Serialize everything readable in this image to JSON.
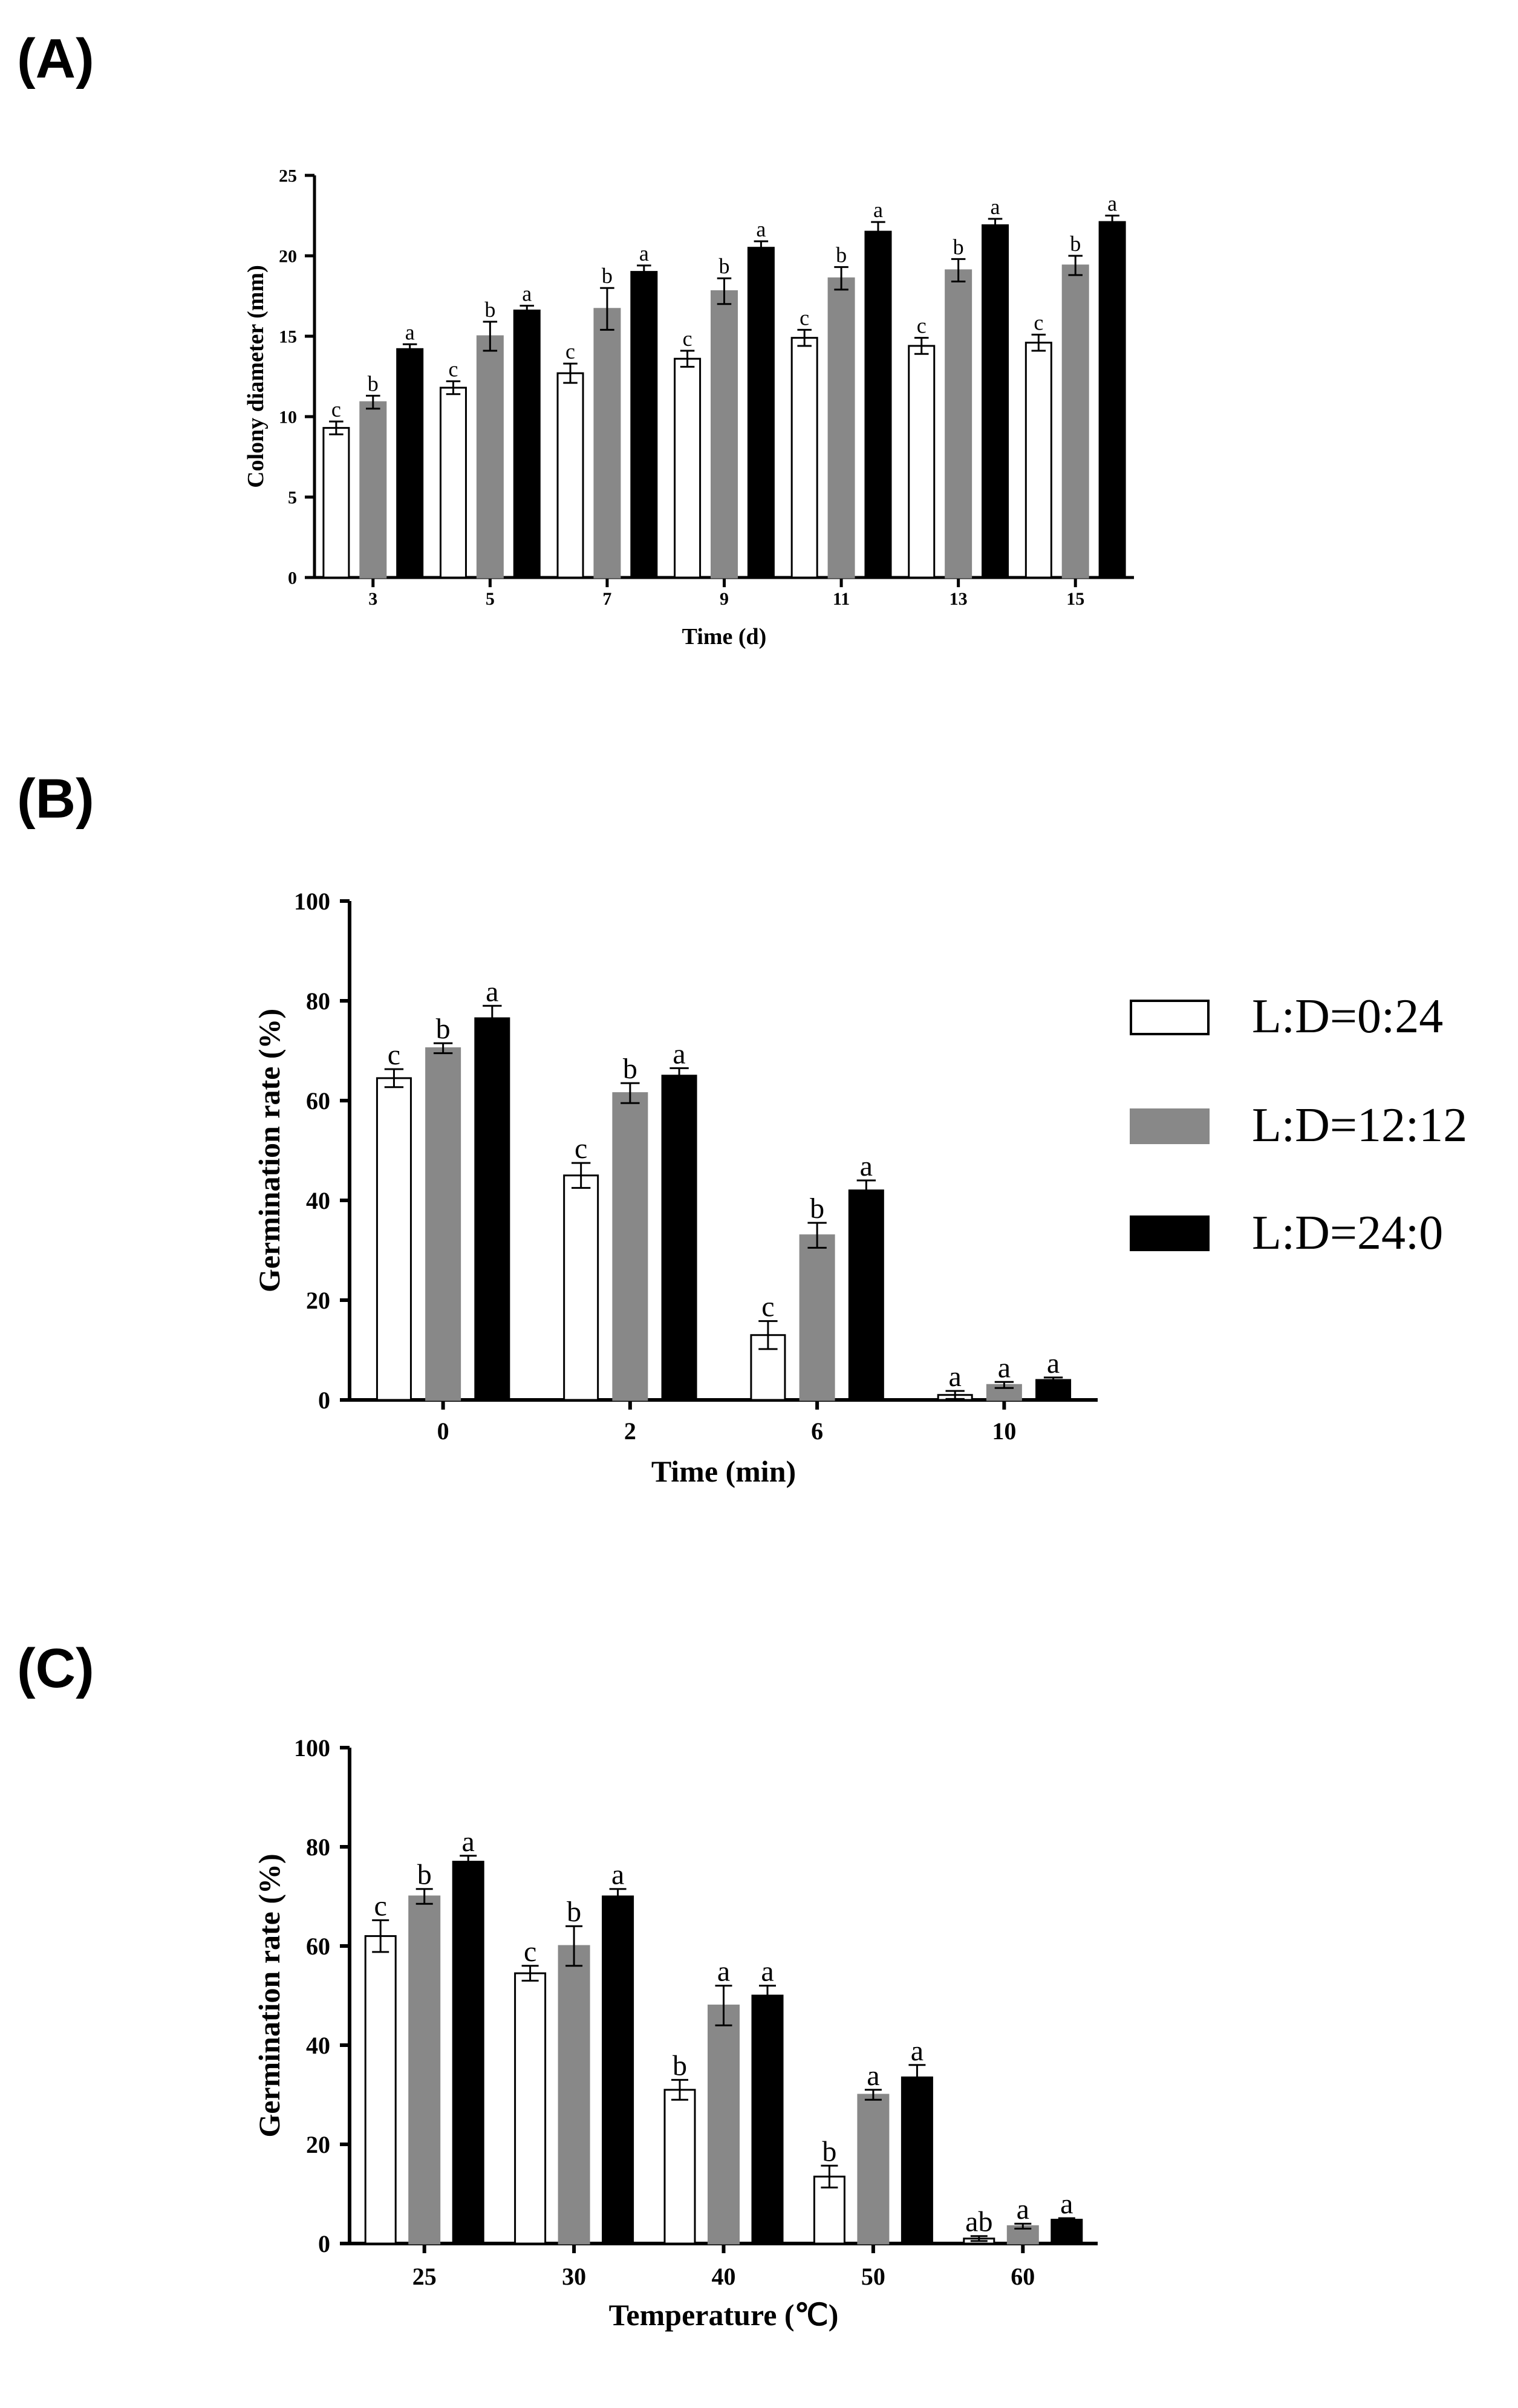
{
  "panels": [
    {
      "label": "(A)",
      "chart_data": {
        "type": "bar",
        "categories": [
          "3",
          "5",
          "7",
          "9",
          "11",
          "13",
          "15"
        ],
        "xlabel": "Time (d)",
        "ylabel": "Colony diameter (mm)",
        "ylim": [
          0,
          25
        ],
        "yticks": [
          "0",
          "5",
          "10",
          "15",
          "20",
          "25"
        ],
        "series": [
          {
            "name": "L:D=0:24",
            "values": [
              9.3,
              11.8,
              12.7,
              13.6,
              14.9,
              14.4,
              14.6
            ],
            "errors": [
              0.4,
              0.4,
              0.6,
              0.5,
              0.5,
              0.5,
              0.5
            ],
            "letters": [
              "c",
              "c",
              "c",
              "c",
              "c",
              "c",
              "c"
            ]
          },
          {
            "name": "L:D=12:12",
            "values": [
              10.9,
              15.0,
              16.7,
              17.8,
              18.6,
              19.1,
              19.4
            ],
            "errors": [
              0.4,
              0.9,
              1.3,
              0.8,
              0.7,
              0.7,
              0.6
            ],
            "letters": [
              "b",
              "b",
              "b",
              "b",
              "b",
              "b",
              "b"
            ]
          },
          {
            "name": "L:D=24:0",
            "values": [
              14.2,
              16.6,
              19.0,
              20.5,
              21.5,
              21.9,
              22.1
            ],
            "errors": [
              0.3,
              0.3,
              0.4,
              0.4,
              0.6,
              0.4,
              0.4
            ],
            "letters": [
              "a",
              "a",
              "a",
              "a",
              "a",
              "a",
              "a"
            ]
          }
        ]
      }
    },
    {
      "label": "(B)",
      "chart_data": {
        "type": "bar",
        "categories": [
          "0",
          "2",
          "6",
          "10"
        ],
        "xlabel": "Time (min)",
        "ylabel": "Germination rate (%)",
        "ylim": [
          0,
          100
        ],
        "yticks": [
          "0",
          "20",
          "40",
          "60",
          "80",
          "100"
        ],
        "series": [
          {
            "name": "L:D=0:24",
            "values": [
              64.5,
              45.0,
              13.0,
              1.0
            ],
            "errors": [
              1.8,
              2.5,
              2.8,
              0.8
            ],
            "letters": [
              "c",
              "c",
              "c",
              "a"
            ]
          },
          {
            "name": "L:D=12:12",
            "values": [
              70.5,
              61.5,
              33.0,
              3.0
            ],
            "errors": [
              1.0,
              2.0,
              2.5,
              0.6
            ],
            "letters": [
              "b",
              "b",
              "b",
              "a"
            ]
          },
          {
            "name": "L:D=24:0",
            "values": [
              76.5,
              65.0,
              42.0,
              4.0
            ],
            "errors": [
              2.5,
              1.5,
              2.0,
              0.5
            ],
            "letters": [
              "a",
              "a",
              "a",
              "a"
            ]
          }
        ]
      }
    },
    {
      "label": "(C)",
      "chart_data": {
        "type": "bar",
        "categories": [
          "25",
          "30",
          "40",
          "50",
          "60"
        ],
        "xlabel": "Temperature (℃)",
        "ylabel": "Germination rate (%)",
        "ylim": [
          0,
          100
        ],
        "yticks": [
          "0",
          "20",
          "40",
          "60",
          "80",
          "100"
        ],
        "series": [
          {
            "name": "L:D=0:24",
            "values": [
              62.0,
              54.5,
              31.0,
              13.5,
              1.0
            ],
            "errors": [
              3.2,
              1.5,
              2.0,
              2.2,
              0.5
            ],
            "letters": [
              "c",
              "c",
              "b",
              "b",
              "ab"
            ]
          },
          {
            "name": "L:D=12:12",
            "values": [
              70.0,
              60.0,
              48.0,
              30.0,
              3.5
            ],
            "errors": [
              1.5,
              4.0,
              4.0,
              1.0,
              0.5
            ],
            "letters": [
              "b",
              "b",
              "a",
              "a",
              "a"
            ]
          },
          {
            "name": "L:D=24:0",
            "values": [
              77.0,
              70.0,
              50.0,
              33.5,
              4.8
            ],
            "errors": [
              1.2,
              1.5,
              2.0,
              2.5,
              0.3
            ],
            "letters": [
              "a",
              "a",
              "a",
              "a",
              "a"
            ]
          }
        ]
      }
    }
  ],
  "legend": [
    {
      "label": "L:D=0:24",
      "color": "#ffffff"
    },
    {
      "label": "L:D=12:12",
      "color": "#888888"
    },
    {
      "label": "L:D=24:0",
      "color": "#000000"
    }
  ]
}
